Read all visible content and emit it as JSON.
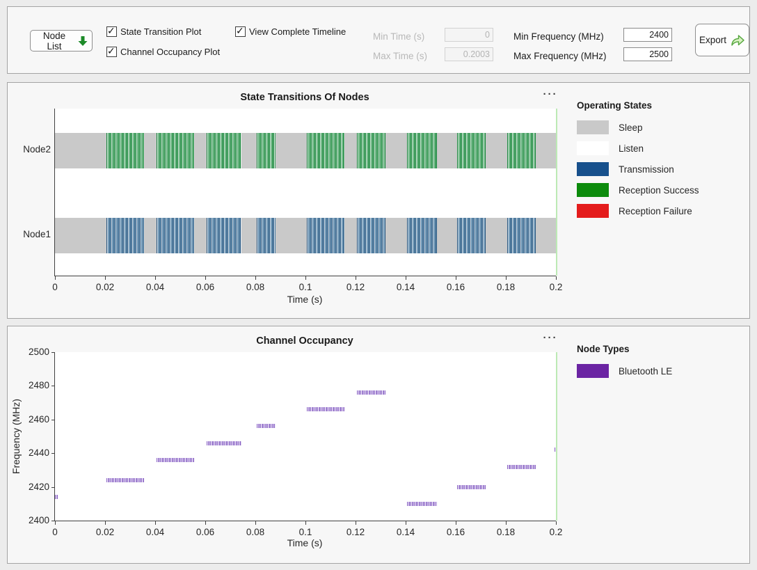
{
  "toolbar": {
    "node_list": {
      "label": "Node List"
    },
    "checkboxes": [
      {
        "label": "State Transition Plot",
        "checked": true
      },
      {
        "label": "Channel Occupancy Plot",
        "checked": true
      },
      {
        "label": "View Complete Timeline",
        "checked": true
      }
    ],
    "fields": [
      {
        "label": "Min Time (s)",
        "value": "0",
        "enabled": false
      },
      {
        "label": "Max Time (s)",
        "value": "0.2003",
        "enabled": false
      },
      {
        "label": "Min Frequency (MHz)",
        "value": "2400",
        "enabled": true
      },
      {
        "label": "Max Frequency (MHz)",
        "value": "2500",
        "enabled": true
      }
    ],
    "export": {
      "label": "Export"
    },
    "icons": {
      "node_list_arrow": "green-down-arrow-icon",
      "export_arrow": "green-share-arrow-icon"
    },
    "accent_green": "#1c8a28"
  },
  "chart_data": [
    {
      "type": "state-timeline",
      "title": "State Transitions Of Nodes",
      "menu_icon": "ellipsis-menu-icon",
      "xlabel": "Time (s)",
      "xlim": [
        0,
        0.2
      ],
      "x_ticks": [
        {
          "v": 0,
          "label": "0"
        },
        {
          "v": 0.02,
          "label": "0.02"
        },
        {
          "v": 0.04,
          "label": "0.04"
        },
        {
          "v": 0.06,
          "label": "0.06"
        },
        {
          "v": 0.08,
          "label": "0.08"
        },
        {
          "v": 0.1,
          "label": "0.1"
        },
        {
          "v": 0.12,
          "label": "0.12"
        },
        {
          "v": 0.14,
          "label": "0.14"
        },
        {
          "v": 0.16,
          "label": "0.16"
        },
        {
          "v": 0.18,
          "label": "0.18"
        },
        {
          "v": 0.2,
          "label": "0.2"
        }
      ],
      "categories": [
        "Node2",
        "Node1"
      ],
      "rows": [
        {
          "node": "Node2",
          "base_state": "Sleep",
          "active_state": "Reception Success",
          "active_periods": [
            [
              0.0205,
              0.0355
            ],
            [
              0.0405,
              0.0555
            ],
            [
              0.0605,
              0.0745
            ],
            [
              0.0805,
              0.088
            ],
            [
              0.1005,
              0.1155
            ],
            [
              0.1205,
              0.132
            ],
            [
              0.1405,
              0.1525
            ],
            [
              0.1605,
              0.172
            ],
            [
              0.1805,
              0.192
            ]
          ]
        },
        {
          "node": "Node1",
          "base_state": "Sleep",
          "active_state": "Transmission",
          "active_periods": [
            [
              0.0205,
              0.0355
            ],
            [
              0.0405,
              0.0555
            ],
            [
              0.0605,
              0.0745
            ],
            [
              0.0805,
              0.088
            ],
            [
              0.1005,
              0.1155
            ],
            [
              0.1205,
              0.132
            ],
            [
              0.1405,
              0.1525
            ],
            [
              0.1605,
              0.172
            ],
            [
              0.1805,
              0.192
            ]
          ]
        }
      ],
      "legend_title": "Operating States",
      "legend_position": "right",
      "legend": [
        {
          "label": "Sleep",
          "color": "#c9c9c9"
        },
        {
          "label": "Listen",
          "color": "#ffffff"
        },
        {
          "label": "Transmission",
          "color": "#17508c"
        },
        {
          "label": "Reception Success",
          "color": "#0c8b0c"
        },
        {
          "label": "Reception Failure",
          "color": "#e41c1c"
        }
      ]
    },
    {
      "type": "scatter",
      "title": "Channel Occupancy",
      "menu_icon": "ellipsis-menu-icon",
      "xlabel": "Time (s)",
      "ylabel": "Frequency (MHz)",
      "xlim": [
        0,
        0.2
      ],
      "ylim": [
        2400,
        2500
      ],
      "x_ticks": [
        {
          "v": 0,
          "label": "0"
        },
        {
          "v": 0.02,
          "label": "0.02"
        },
        {
          "v": 0.04,
          "label": "0.04"
        },
        {
          "v": 0.06,
          "label": "0.06"
        },
        {
          "v": 0.08,
          "label": "0.08"
        },
        {
          "v": 0.1,
          "label": "0.1"
        },
        {
          "v": 0.12,
          "label": "0.12"
        },
        {
          "v": 0.14,
          "label": "0.14"
        },
        {
          "v": 0.16,
          "label": "0.16"
        },
        {
          "v": 0.18,
          "label": "0.18"
        },
        {
          "v": 0.2,
          "label": "0.2"
        }
      ],
      "y_ticks": [
        {
          "v": 2400,
          "label": "2400"
        },
        {
          "v": 2420,
          "label": "2420"
        },
        {
          "v": 2440,
          "label": "2440"
        },
        {
          "v": 2460,
          "label": "2460"
        },
        {
          "v": 2480,
          "label": "2480"
        },
        {
          "v": 2500,
          "label": "2500"
        }
      ],
      "series": [
        {
          "name": "Bluetooth LE",
          "color": "#6b24a3",
          "segments": [
            {
              "t": [
                0.0,
                0.001
              ],
              "freq": 2414
            },
            {
              "t": [
                0.0205,
                0.0355
              ],
              "freq": 2424
            },
            {
              "t": [
                0.0405,
                0.0555
              ],
              "freq": 2436
            },
            {
              "t": [
                0.0605,
                0.0745
              ],
              "freq": 2446
            },
            {
              "t": [
                0.0805,
                0.088
              ],
              "freq": 2456
            },
            {
              "t": [
                0.1005,
                0.1155
              ],
              "freq": 2466
            },
            {
              "t": [
                0.1205,
                0.132
              ],
              "freq": 2476
            },
            {
              "t": [
                0.1405,
                0.1525
              ],
              "freq": 2410
            },
            {
              "t": [
                0.1605,
                0.172
              ],
              "freq": 2420
            },
            {
              "t": [
                0.1805,
                0.192
              ],
              "freq": 2432
            },
            {
              "t": [
                0.1995,
                0.2
              ],
              "freq": 2442
            }
          ]
        }
      ],
      "legend_title": "Node Types",
      "legend_position": "right",
      "legend": [
        {
          "label": "Bluetooth LE",
          "color": "#6b24a3"
        }
      ]
    }
  ]
}
